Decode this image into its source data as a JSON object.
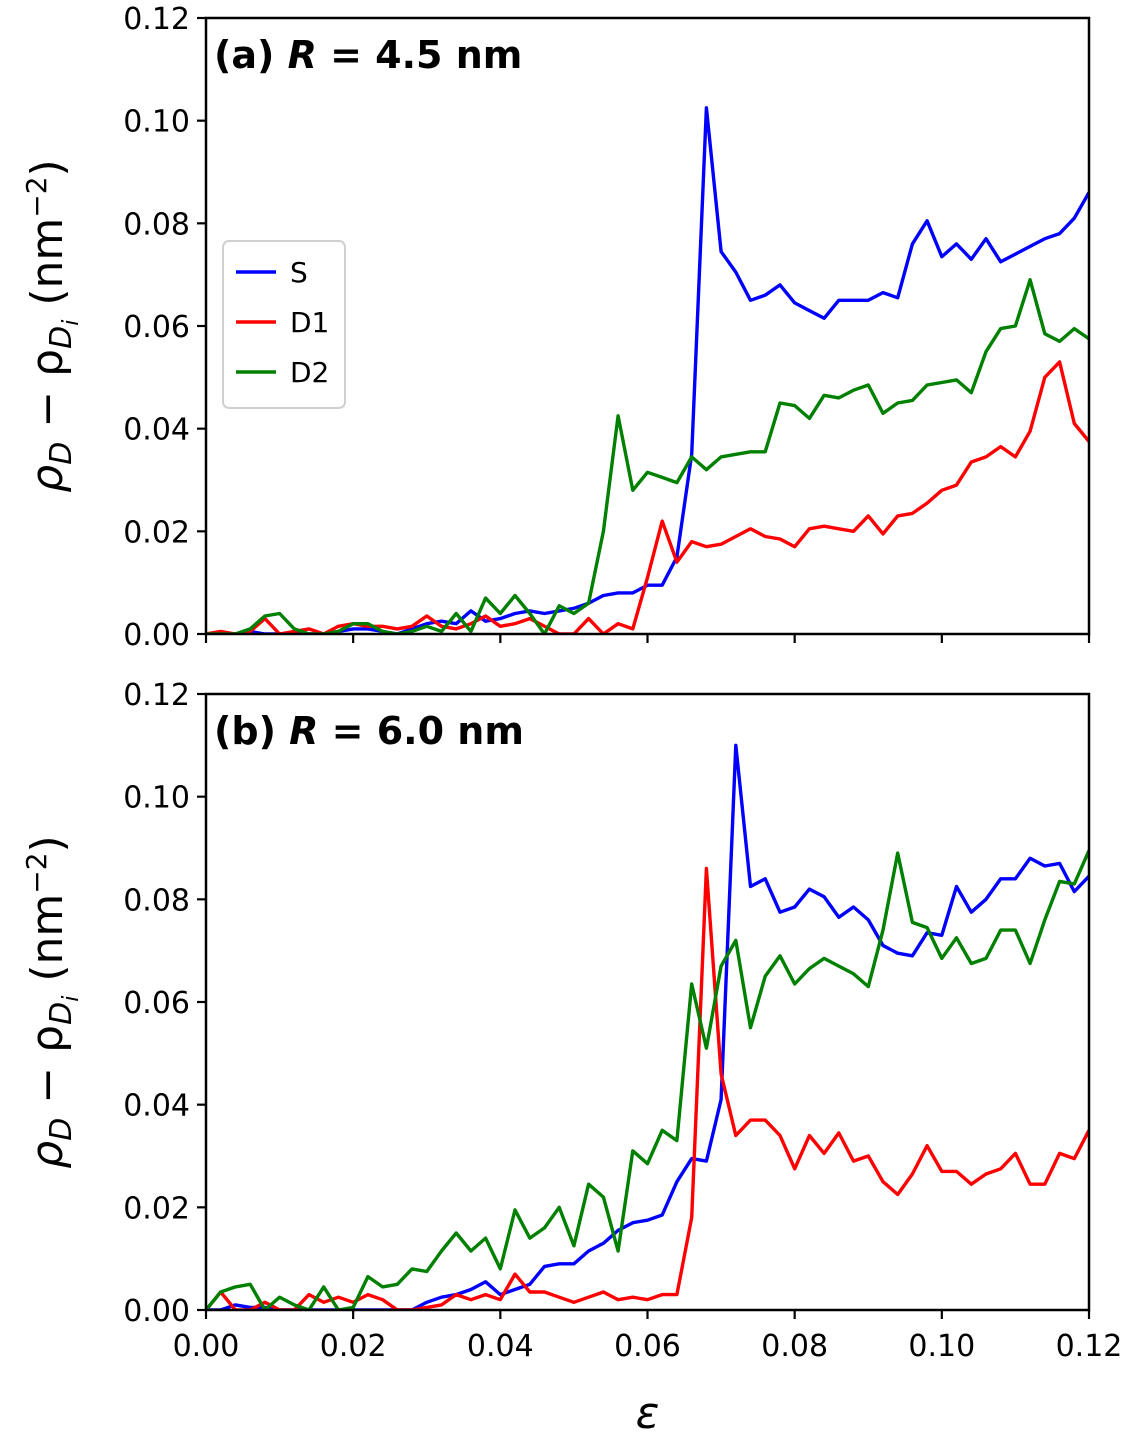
{
  "chart_data": {
    "type": "line",
    "xlabel": "ε",
    "ylabel_main": "ρ",
    "ylabel_sub1": "D",
    "ylabel_minus": " − ρ",
    "ylabel_sub2": "D",
    "ylabel_sub3": "i",
    "ylabel_units": " (nm",
    "ylabel_exp": "−2",
    "ylabel_close": ")",
    "xlim": [
      0,
      0.12
    ],
    "ylim": [
      0,
      0.12
    ],
    "xticks": [
      "0.00",
      "0.02",
      "0.04",
      "0.06",
      "0.08",
      "0.10",
      "0.12"
    ],
    "yticks": [
      "0.00",
      "0.02",
      "0.04",
      "0.06",
      "0.08",
      "0.10",
      "0.12"
    ],
    "legend": {
      "position": "center-left of panel (a)",
      "entries": [
        {
          "label": "S",
          "color": "#0000ff"
        },
        {
          "label": "D1",
          "color": "#ff0000"
        },
        {
          "label": "D2",
          "color": "#008000"
        }
      ]
    },
    "panels": [
      {
        "id": "a",
        "title_prefix": "(a) ",
        "title_var": "R",
        "title_suffix": " = 4.5 nm",
        "x": [
          0.0,
          0.002,
          0.004,
          0.006,
          0.008,
          0.01,
          0.012,
          0.014,
          0.016,
          0.018,
          0.02,
          0.022,
          0.024,
          0.026,
          0.028,
          0.03,
          0.032,
          0.034,
          0.036,
          0.038,
          0.04,
          0.042,
          0.044,
          0.046,
          0.048,
          0.05,
          0.052,
          0.054,
          0.056,
          0.058,
          0.06,
          0.062,
          0.064,
          0.066,
          0.068,
          0.07,
          0.072,
          0.074,
          0.076,
          0.078,
          0.08,
          0.082,
          0.084,
          0.086,
          0.088,
          0.09,
          0.092,
          0.094,
          0.096,
          0.098,
          0.1,
          0.102,
          0.104,
          0.106,
          0.108,
          0.11,
          0.112,
          0.114,
          0.116,
          0.118,
          0.12
        ],
        "series": [
          {
            "name": "S",
            "color": "#0000ff",
            "values": [
              0.0,
              0.0,
              0.0,
              0.0005,
              0.0,
              0.0,
              0.0,
              0.0,
              0.0,
              0.0005,
              0.001,
              0.001,
              0.0005,
              0.0,
              0.001,
              0.002,
              0.0025,
              0.002,
              0.0045,
              0.0025,
              0.003,
              0.004,
              0.0045,
              0.004,
              0.0045,
              0.005,
              0.006,
              0.0075,
              0.008,
              0.008,
              0.0095,
              0.0095,
              0.015,
              0.035,
              0.1025,
              0.0745,
              0.0705,
              0.065,
              0.066,
              0.068,
              0.0645,
              0.063,
              0.0615,
              0.065,
              0.065,
              0.065,
              0.0665,
              0.0655,
              0.076,
              0.0805,
              0.0735,
              0.076,
              0.073,
              0.077,
              0.0725,
              0.074,
              0.0755,
              0.077,
              0.078,
              0.081,
              0.086
            ]
          },
          {
            "name": "D1",
            "color": "#ff0000",
            "values": [
              0.0,
              0.0005,
              0.0,
              0.0005,
              0.003,
              0.0,
              0.0005,
              0.001,
              0.0,
              0.0015,
              0.002,
              0.0015,
              0.0015,
              0.001,
              0.0015,
              0.0035,
              0.0015,
              0.001,
              0.002,
              0.0035,
              0.0015,
              0.002,
              0.003,
              0.0015,
              0.0,
              0.0,
              0.003,
              0.0,
              0.002,
              0.001,
              0.011,
              0.022,
              0.014,
              0.018,
              0.017,
              0.0175,
              0.019,
              0.0205,
              0.019,
              0.0185,
              0.017,
              0.0205,
              0.021,
              0.0205,
              0.02,
              0.023,
              0.0195,
              0.023,
              0.0235,
              0.0255,
              0.028,
              0.029,
              0.0335,
              0.0345,
              0.0365,
              0.0345,
              0.0395,
              0.05,
              0.053,
              0.041,
              0.0375
            ]
          },
          {
            "name": "D2",
            "color": "#008000",
            "values": [
              0.0,
              0.0,
              0.0,
              0.001,
              0.0035,
              0.004,
              0.001,
              0.0,
              0.0,
              0.0005,
              0.002,
              0.002,
              0.0005,
              0.0,
              0.0005,
              0.0015,
              0.0005,
              0.004,
              0.0005,
              0.007,
              0.004,
              0.0075,
              0.004,
              0.0,
              0.0055,
              0.004,
              0.006,
              0.02,
              0.0425,
              0.028,
              0.0315,
              0.0305,
              0.0295,
              0.0345,
              0.032,
              0.0345,
              0.035,
              0.0355,
              0.0355,
              0.045,
              0.0445,
              0.042,
              0.0465,
              0.046,
              0.0475,
              0.0485,
              0.043,
              0.045,
              0.0455,
              0.0485,
              0.049,
              0.0495,
              0.047,
              0.055,
              0.0595,
              0.06,
              0.069,
              0.0585,
              0.057,
              0.0595,
              0.0575
            ]
          }
        ]
      },
      {
        "id": "b",
        "title_prefix": "(b) ",
        "title_var": "R",
        "title_suffix": " = 6.0 nm",
        "x": [
          0.0,
          0.002,
          0.004,
          0.006,
          0.008,
          0.01,
          0.012,
          0.014,
          0.016,
          0.018,
          0.02,
          0.022,
          0.024,
          0.026,
          0.028,
          0.03,
          0.032,
          0.034,
          0.036,
          0.038,
          0.04,
          0.042,
          0.044,
          0.046,
          0.048,
          0.05,
          0.052,
          0.054,
          0.056,
          0.058,
          0.06,
          0.062,
          0.064,
          0.066,
          0.068,
          0.07,
          0.072,
          0.074,
          0.076,
          0.078,
          0.08,
          0.082,
          0.084,
          0.086,
          0.088,
          0.09,
          0.092,
          0.094,
          0.096,
          0.098,
          0.1,
          0.102,
          0.104,
          0.106,
          0.108,
          0.11,
          0.112,
          0.114,
          0.116,
          0.118,
          0.12
        ],
        "series": [
          {
            "name": "S",
            "color": "#0000ff",
            "values": [
              0.0,
              0.0,
              0.001,
              0.0005,
              0.0005,
              0.0,
              0.0,
              0.0,
              0.0,
              0.0,
              0.0,
              0.0,
              0.0,
              0.0,
              0.0,
              0.0015,
              0.0025,
              0.003,
              0.004,
              0.0055,
              0.003,
              0.004,
              0.005,
              0.0085,
              0.009,
              0.009,
              0.0115,
              0.013,
              0.0155,
              0.017,
              0.0175,
              0.0185,
              0.025,
              0.0295,
              0.029,
              0.041,
              0.11,
              0.0825,
              0.084,
              0.0775,
              0.0785,
              0.082,
              0.0805,
              0.0765,
              0.0785,
              0.076,
              0.071,
              0.0695,
              0.069,
              0.0735,
              0.073,
              0.0825,
              0.0775,
              0.08,
              0.084,
              0.084,
              0.088,
              0.0865,
              0.087,
              0.0815,
              0.0845
            ]
          },
          {
            "name": "D1",
            "color": "#ff0000",
            "values": [
              0.0,
              0.0035,
              0.0,
              0.0,
              0.0015,
              0.0,
              0.0,
              0.003,
              0.0015,
              0.0025,
              0.0015,
              0.003,
              0.002,
              0.0,
              0.0,
              0.0005,
              0.001,
              0.003,
              0.002,
              0.003,
              0.002,
              0.007,
              0.0035,
              0.0035,
              0.0025,
              0.0015,
              0.0025,
              0.0035,
              0.002,
              0.0025,
              0.002,
              0.003,
              0.003,
              0.018,
              0.086,
              0.046,
              0.034,
              0.037,
              0.037,
              0.034,
              0.0275,
              0.034,
              0.0305,
              0.0345,
              0.029,
              0.03,
              0.025,
              0.0225,
              0.0265,
              0.032,
              0.027,
              0.027,
              0.0245,
              0.0265,
              0.0275,
              0.0305,
              0.0245,
              0.0245,
              0.0305,
              0.0295,
              0.035
            ]
          },
          {
            "name": "D2",
            "color": "#008000",
            "values": [
              0.0,
              0.0035,
              0.0045,
              0.005,
              0.0,
              0.0025,
              0.001,
              0.0,
              0.0045,
              0.0,
              0.0005,
              0.0065,
              0.0045,
              0.005,
              0.008,
              0.0075,
              0.0115,
              0.015,
              0.0115,
              0.014,
              0.008,
              0.0195,
              0.014,
              0.016,
              0.02,
              0.0125,
              0.0245,
              0.022,
              0.0115,
              0.031,
              0.0285,
              0.035,
              0.033,
              0.0635,
              0.051,
              0.067,
              0.072,
              0.055,
              0.065,
              0.069,
              0.0635,
              0.0665,
              0.0685,
              0.067,
              0.0655,
              0.063,
              0.074,
              0.089,
              0.0755,
              0.0745,
              0.0685,
              0.0725,
              0.0675,
              0.0685,
              0.074,
              0.074,
              0.0675,
              0.076,
              0.0835,
              0.083,
              0.0895
            ]
          }
        ]
      }
    ]
  }
}
